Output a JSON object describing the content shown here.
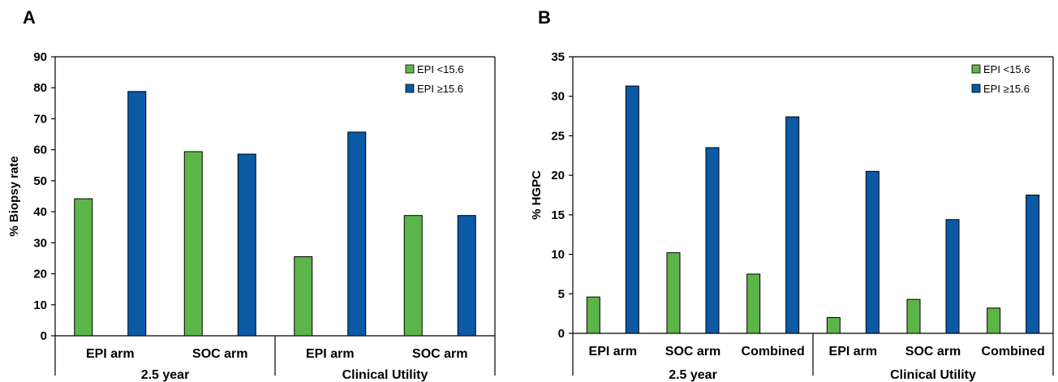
{
  "colors": {
    "epi_low": "#5cb548",
    "epi_high": "#0a5aa6"
  },
  "chart_data": [
    {
      "type": "bar",
      "panel": "A",
      "ylabel": "% Biopsy rate",
      "ylim": [
        0,
        90
      ],
      "yticks": [
        0,
        10,
        20,
        30,
        40,
        50,
        60,
        70,
        80,
        90
      ],
      "categories": [
        "EPI arm",
        "SOC arm",
        "EPI arm",
        "SOC arm"
      ],
      "groups": [
        {
          "label": "2.5 year",
          "span": [
            0,
            1
          ]
        },
        {
          "label": "Clinical Utility",
          "span": [
            2,
            3
          ]
        }
      ],
      "series": [
        {
          "name": "EPI <15.6",
          "values": [
            44.2,
            59.4,
            25.5,
            38.8
          ]
        },
        {
          "name": "EPI ≥15.6",
          "values": [
            78.8,
            58.6,
            65.7,
            38.8
          ]
        }
      ],
      "legend": "top-right",
      "grid": false
    },
    {
      "type": "bar",
      "panel": "B",
      "ylabel": "% HGPC",
      "ylim": [
        0,
        35
      ],
      "yticks": [
        0,
        5,
        10,
        15,
        20,
        25,
        30,
        35
      ],
      "categories": [
        "EPI arm",
        "SOC arm",
        "Combined",
        "EPI arm",
        "SOC arm",
        "Combined"
      ],
      "groups": [
        {
          "label": "2.5 year",
          "span": [
            0,
            2
          ]
        },
        {
          "label": "Clinical Utility",
          "span": [
            3,
            5
          ]
        }
      ],
      "series": [
        {
          "name": "EPI <15.6",
          "values": [
            4.6,
            10.2,
            7.5,
            2.0,
            4.3,
            3.2
          ]
        },
        {
          "name": "EPI ≥15.6",
          "values": [
            31.3,
            23.5,
            27.4,
            20.5,
            14.4,
            17.5
          ]
        }
      ],
      "legend": "top-right",
      "grid": false
    }
  ]
}
